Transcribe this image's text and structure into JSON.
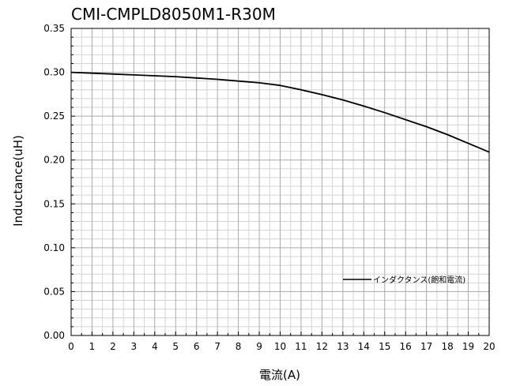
{
  "chart_data": {
    "type": "line",
    "title": "CMI-CMPLD8050M1-R30M",
    "xlabel": "電流(A)",
    "ylabel": "Inductance(uH)",
    "xlim": [
      0,
      20
    ],
    "ylim": [
      0,
      0.35
    ],
    "x_ticks": [
      "0",
      "1",
      "2",
      "3",
      "4",
      "5",
      "6",
      "7",
      "8",
      "9",
      "10",
      "11",
      "12",
      "13",
      "14",
      "15",
      "16",
      "17",
      "18",
      "19",
      "20"
    ],
    "y_ticks": [
      "0.00",
      "0.05",
      "0.10",
      "0.15",
      "0.20",
      "0.25",
      "0.30",
      "0.35"
    ],
    "grid": true,
    "legend_position": "bottom-right",
    "series": [
      {
        "name": "インダクタンス(飽和電流)",
        "color": "#000000",
        "x": [
          0,
          1,
          2,
          3,
          4,
          5,
          6,
          7,
          8,
          9,
          10,
          11,
          12,
          13,
          14,
          15,
          16,
          17,
          18,
          19,
          20
        ],
        "y": [
          0.3,
          0.299,
          0.298,
          0.297,
          0.296,
          0.295,
          0.2935,
          0.292,
          0.29,
          0.288,
          0.285,
          0.28,
          0.2745,
          0.2685,
          0.2615,
          0.254,
          0.246,
          0.238,
          0.229,
          0.219,
          0.209
        ]
      }
    ]
  }
}
